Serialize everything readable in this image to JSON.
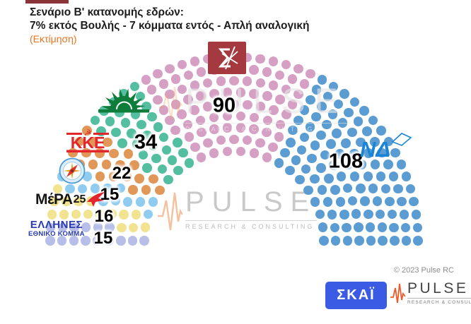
{
  "header": {
    "title_line1": "Σενάριο Β' κατανομής εδρών:",
    "title_line2": "7% εκτός Βουλής - 7 κόμματα εντός - Απλή αναλογική",
    "note": "(Εκτίμηση)"
  },
  "chart_data": {
    "type": "pie",
    "variant": "parliament-hemicycle",
    "total_seats": 300,
    "title": "Σενάριο Β' κατανομής εδρών (Απλή αναλογική)",
    "legend_position": "labels-on-chart",
    "parties": [
      {
        "name": "ΕΛΛΗΝΕΣ ΕΘΝΙΚΟ ΚΟΜΜΑ",
        "seats": 15,
        "color": "#b7bfe9"
      },
      {
        "name": "ΜέΡΑ25",
        "seats": 16,
        "color": "#f1e38f"
      },
      {
        "name": "Πλεύση Ελευθερίας",
        "seats": 15,
        "color": "#90ccf0"
      },
      {
        "name": "ΚΚΕ",
        "seats": 22,
        "color": "#e09758"
      },
      {
        "name": "ΠΑΣΟΚ",
        "seats": 34,
        "color": "#53bfa0"
      },
      {
        "name": "ΣΥΡΙΖΑ",
        "seats": 90,
        "color": "#d6a0c5"
      },
      {
        "name": "ΝΔ",
        "seats": 108,
        "color": "#5b9dd2"
      }
    ]
  },
  "logos": {
    "kke_text": "ΚΚΕ",
    "mera_text": "ΜέΡΑ",
    "mera_num": "25",
    "ellines_line1": "ΕΛΛΗΝΕΣ",
    "ellines_line2": "ΕΘΝΙΚΟ ΚΟΜΜΑ",
    "nd_text": "ΝΔ"
  },
  "watermark": {
    "brand": "PULSE",
    "tagline": "RESEARCH & CONSULTING"
  },
  "footer": {
    "copyright": "© 2023 Pulse RC",
    "skai_text": "ΣΚΑΪ",
    "pulse_text": "PULSE",
    "pulse_tagline": "RESEARCH & CONSULTING"
  }
}
